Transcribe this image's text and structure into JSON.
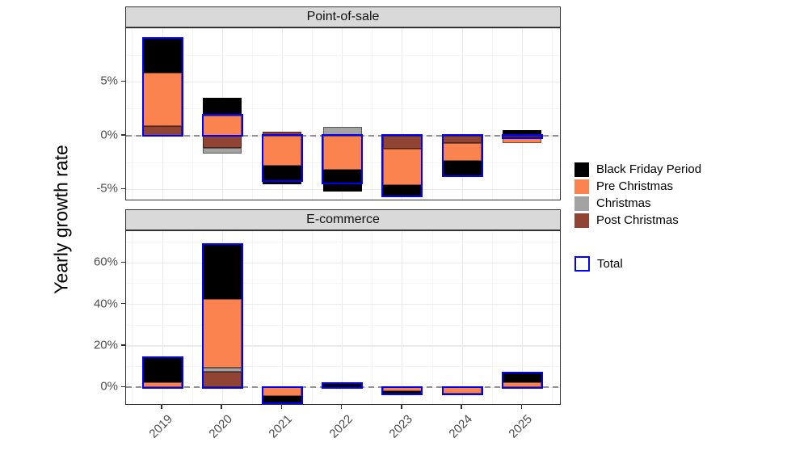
{
  "ylabel": "Yearly growth rate",
  "years": [
    "2019",
    "2020",
    "2021",
    "2022",
    "2023",
    "2024",
    "2025"
  ],
  "colors": {
    "black_friday": "#000000",
    "pre_christmas": "#FB8350",
    "christmas": "#A3A3A3",
    "post_christmas": "#8F4434",
    "total_outline": "#0000FF",
    "strip_bg": "#D9D9D9",
    "grid_major": "#EBEBEB",
    "zero_line": "#929292"
  },
  "legend": {
    "fill_items": [
      {
        "key": "black_friday",
        "label": "Black Friday Period"
      },
      {
        "key": "pre_christmas",
        "label": "Pre Christmas"
      },
      {
        "key": "christmas",
        "label": "Christmas"
      },
      {
        "key": "post_christmas",
        "label": "Post Christmas"
      }
    ],
    "total_item": {
      "key": "total_outline",
      "label": "Total"
    }
  },
  "chart_data": [
    {
      "type": "bar",
      "facet": "Point-of-sale",
      "stacked": true,
      "stack_order_from_zero": [
        "post",
        "christmas",
        "pre",
        "bf"
      ],
      "ylim": [
        -6.1,
        10.0
      ],
      "yticks": [
        {
          "v": 5,
          "label": "5%"
        },
        {
          "v": 0,
          "label": "0%"
        },
        {
          "v": -5,
          "label": "-5%"
        }
      ],
      "yticks_minor": [
        7.5,
        2.5,
        -2.5
      ],
      "bars": [
        {
          "year": "2019",
          "bf": 3.2,
          "pre": 4.95,
          "christmas": 0,
          "post": 0.9,
          "total": 9.05
        },
        {
          "year": "2020",
          "bf": 1.7,
          "pre": 1.85,
          "christmas": -0.5,
          "post": -1.15,
          "total": 1.9
        },
        {
          "year": "2021",
          "bf": -1.75,
          "pre": -2.8,
          "christmas": 0,
          "post": 0.4,
          "total": -4.15
        },
        {
          "year": "2022",
          "bf": -2.0,
          "pre": -3.2,
          "christmas": 0.8,
          "post": 0,
          "total": -4.4
        },
        {
          "year": "2023",
          "bf": -1.0,
          "pre": -3.4,
          "christmas": 0,
          "post": -1.2,
          "total": -5.6
        },
        {
          "year": "2024",
          "bf": -1.4,
          "pre": -1.7,
          "christmas": 0,
          "post": -0.65,
          "total": -3.75
        },
        {
          "year": "2025",
          "bf": 0.5,
          "pre": -0.55,
          "christmas": 0,
          "post": -0.15,
          "total": -0.2
        }
      ]
    },
    {
      "type": "bar",
      "facet": "E-commerce",
      "stacked": true,
      "stack_order_from_zero": [
        "post",
        "christmas",
        "pre",
        "bf"
      ],
      "ylim": [
        -8.8,
        75.3
      ],
      "yticks": [
        {
          "v": 60,
          "label": "60%"
        },
        {
          "v": 40,
          "label": "40%"
        },
        {
          "v": 20,
          "label": "20%"
        },
        {
          "v": 0,
          "label": "0%"
        }
      ],
      "yticks_minor": [
        70,
        50,
        30,
        10
      ],
      "bars": [
        {
          "year": "2019",
          "bf": 12.1,
          "pre": 2.3,
          "christmas": 0,
          "post": 0,
          "total": 14.4
        },
        {
          "year": "2020",
          "bf": 26.5,
          "pre": 33.0,
          "christmas": 2.0,
          "post": 7.5,
          "total": 69.0
        },
        {
          "year": "2021",
          "bf": -3.3,
          "pre": -4.2,
          "christmas": 0,
          "post": 0,
          "total": -7.5
        },
        {
          "year": "2022",
          "bf": 1.5,
          "pre": 0.3,
          "christmas": 0,
          "post": 0,
          "total": 1.8
        },
        {
          "year": "2023",
          "bf": -1.5,
          "pre": -1.8,
          "christmas": 0,
          "post": 0,
          "total": -3.3
        },
        {
          "year": "2024",
          "bf": 0,
          "pre": -3.0,
          "christmas": 0,
          "post": 0,
          "total": -3.0
        },
        {
          "year": "2025",
          "bf": 4.4,
          "pre": 2.6,
          "christmas": 0,
          "post": 0,
          "total": 7.0
        }
      ]
    }
  ]
}
